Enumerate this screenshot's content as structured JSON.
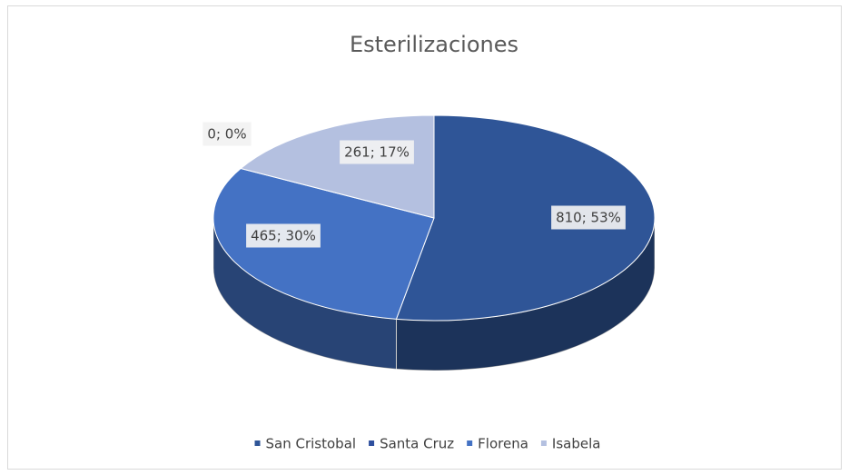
{
  "chart_data": {
    "type": "pie3d",
    "title": "Esterilizaciones",
    "categories": [
      "San Cristobal",
      "Santa Cruz",
      "Florena",
      "Isabela"
    ],
    "values": [
      810,
      0,
      465,
      261
    ],
    "value_labels": [
      "810; 53%",
      "0; 0%",
      "465; 30%",
      "261; 17%"
    ],
    "colors": [
      "#2f5597",
      "#2e4f9e",
      "#4472c4",
      "#b4c0e0"
    ],
    "legend": "bottom"
  }
}
